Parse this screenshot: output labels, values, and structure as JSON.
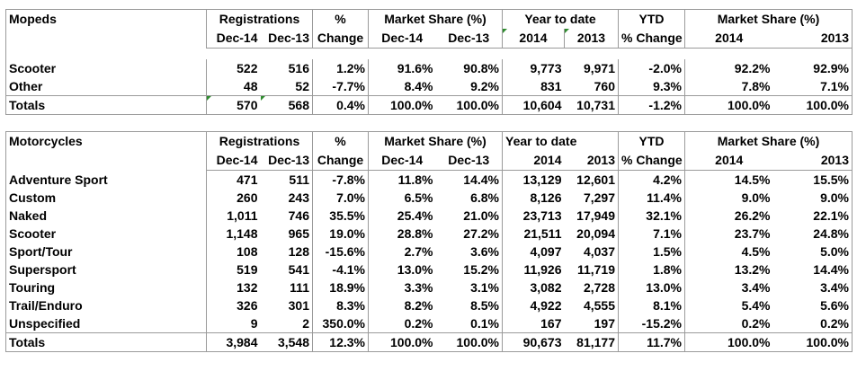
{
  "headers": {
    "registrations": "Registrations",
    "percent": "%",
    "change": "Change",
    "market_share": "Market Share (%)",
    "year_to_date": "Year to date",
    "ytd": "YTD",
    "ytd_change": "% Change",
    "dec14": "Dec-14",
    "dec13": "Dec-13",
    "y2014": "2014",
    "y2013": "2013"
  },
  "mopeds": {
    "title": "Mopeds",
    "rows": [
      [
        "Scooter",
        "522",
        "516",
        "1.2%",
        "91.6%",
        "90.8%",
        "9,773",
        "9,971",
        "-2.0%",
        "92.2%",
        "92.9%"
      ],
      [
        "Other",
        "48",
        "52",
        "-7.7%",
        "8.4%",
        "9.2%",
        "831",
        "760",
        "9.3%",
        "7.8%",
        "7.1%"
      ]
    ],
    "totals": [
      "Totals",
      "570",
      "568",
      "0.4%",
      "100.0%",
      "100.0%",
      "10,604",
      "10,731",
      "-1.2%",
      "100.0%",
      "100.0%"
    ]
  },
  "motorcycles": {
    "title": "Motorcycles",
    "rows": [
      [
        "Adventure Sport",
        "471",
        "511",
        "-7.8%",
        "11.8%",
        "14.4%",
        "13,129",
        "12,601",
        "4.2%",
        "14.5%",
        "15.5%"
      ],
      [
        "Custom",
        "260",
        "243",
        "7.0%",
        "6.5%",
        "6.8%",
        "8,126",
        "7,297",
        "11.4%",
        "9.0%",
        "9.0%"
      ],
      [
        "Naked",
        "1,011",
        "746",
        "35.5%",
        "25.4%",
        "21.0%",
        "23,713",
        "17,949",
        "32.1%",
        "26.2%",
        "22.1%"
      ],
      [
        "Scooter",
        "1,148",
        "965",
        "19.0%",
        "28.8%",
        "27.2%",
        "21,511",
        "20,094",
        "7.1%",
        "23.7%",
        "24.8%"
      ],
      [
        "Sport/Tour",
        "108",
        "128",
        "-15.6%",
        "2.7%",
        "3.6%",
        "4,097",
        "4,037",
        "1.5%",
        "4.5%",
        "5.0%"
      ],
      [
        "Supersport",
        "519",
        "541",
        "-4.1%",
        "13.0%",
        "15.2%",
        "11,926",
        "11,719",
        "1.8%",
        "13.2%",
        "14.4%"
      ],
      [
        "Touring",
        "132",
        "111",
        "18.9%",
        "3.3%",
        "3.1%",
        "3,082",
        "2,728",
        "13.0%",
        "3.4%",
        "3.4%"
      ],
      [
        "Trail/Enduro",
        "326",
        "301",
        "8.3%",
        "8.2%",
        "8.5%",
        "4,922",
        "4,555",
        "8.1%",
        "5.4%",
        "5.6%"
      ],
      [
        "Unspecified",
        "9",
        "2",
        "350.0%",
        "0.2%",
        "0.1%",
        "167",
        "197",
        "-15.2%",
        "0.2%",
        "0.2%"
      ]
    ],
    "totals": [
      "Totals",
      "3,984",
      "3,548",
      "12.3%",
      "100.0%",
      "100.0%",
      "90,673",
      "81,177",
      "11.7%",
      "100.0%",
      "100.0%"
    ]
  }
}
